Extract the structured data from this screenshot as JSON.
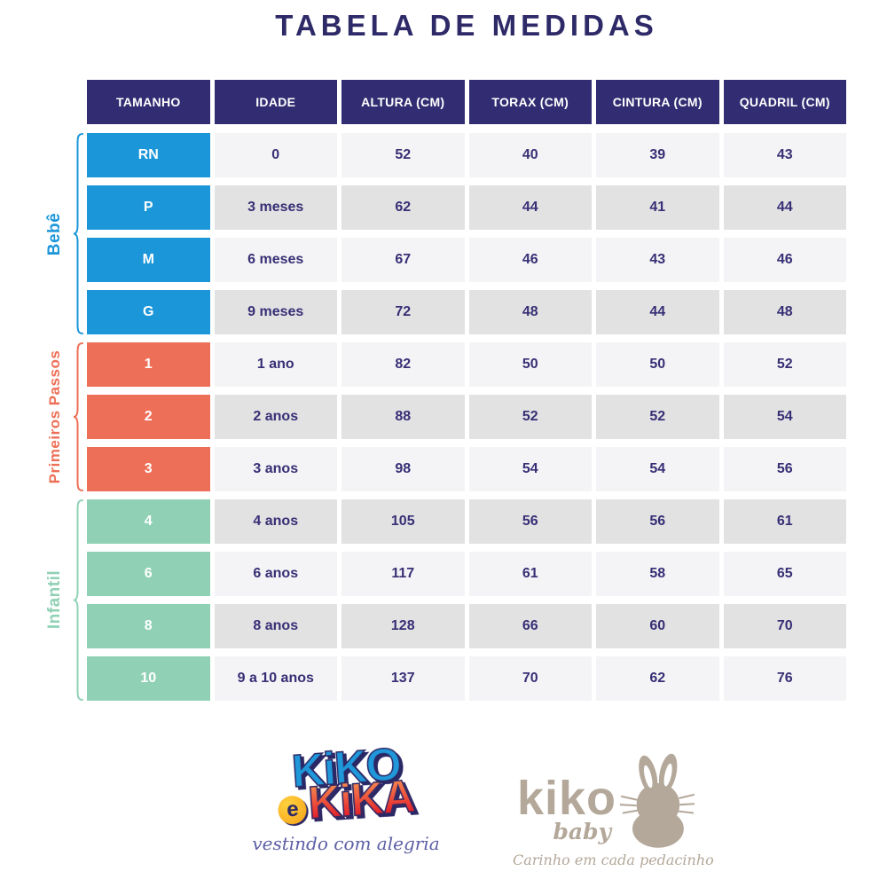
{
  "title": "TABELA DE MEDIDAS",
  "chart_data": {
    "type": "table",
    "title": "TABELA DE MEDIDAS",
    "columns": [
      "TAMANHO",
      "IDADE",
      "ALTURA (CM)",
      "TORAX (CM)",
      "CINTURA (CM)",
      "QUADRIL (CM)"
    ],
    "row_groups": [
      {
        "group": "Bebê",
        "color": "#1b96d9",
        "rows": [
          [
            "RN",
            "0",
            52,
            40,
            39,
            43
          ],
          [
            "P",
            "3 meses",
            62,
            44,
            41,
            44
          ],
          [
            "M",
            "6 meses",
            67,
            46,
            43,
            46
          ],
          [
            "G",
            "9 meses",
            72,
            48,
            44,
            48
          ]
        ]
      },
      {
        "group": "Primeiros Passos",
        "color": "#ee6f57",
        "rows": [
          [
            "1",
            "1 ano",
            82,
            50,
            50,
            52
          ],
          [
            "2",
            "2 anos",
            88,
            52,
            52,
            54
          ],
          [
            "3",
            "3 anos",
            98,
            54,
            54,
            56
          ]
        ]
      },
      {
        "group": "Infantil",
        "color": "#90d1b5",
        "rows": [
          [
            "4",
            "4 anos",
            105,
            56,
            56,
            61
          ],
          [
            "6",
            "6 anos",
            117,
            61,
            58,
            65
          ],
          [
            "8",
            "8 anos",
            128,
            66,
            60,
            70
          ],
          [
            "10",
            "9 a 10 anos",
            137,
            70,
            62,
            76
          ]
        ]
      }
    ],
    "layout": {
      "header_color": "#322d72",
      "zebra_colors": [
        "#f4f4f6",
        "#e2e2e3"
      ],
      "text_color": "#372f75",
      "title_color": "#2e2a68",
      "grid": "cell-gap",
      "legend_position": "left-brackets"
    }
  },
  "footer": {
    "logo_kiko_e_kika": {
      "word1": "KiKO",
      "connector": "e",
      "word2": "KiKA",
      "tagline": "vestindo com alegria",
      "colors": {
        "word1": "#1f97d8",
        "word2_gradient_top": "#f5854e",
        "word2_gradient_bottom": "#e5252c",
        "outline": "#2b2866",
        "e_badge": "#f7b219",
        "tagline": "#5c5fa5"
      }
    },
    "logo_kiko_baby": {
      "name": "kiko",
      "sub": "baby",
      "tagline": "Carinho em cada pedacinho",
      "color": "#b4a89a"
    }
  }
}
